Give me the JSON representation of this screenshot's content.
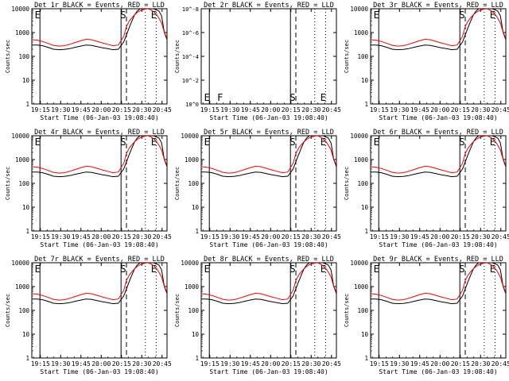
{
  "chart_data": {
    "type": "line",
    "layout": "grid-3x3",
    "ylabel": "Counts/sec",
    "xlabel": "Start Time (06-Jan-03 19:08:40)",
    "x_tick_labels": [
      "19:15",
      "19:30",
      "19:45",
      "20:00",
      "20:15",
      "20:30",
      "20:45"
    ],
    "x_tick_minutes": [
      6.33,
      21.33,
      36.33,
      51.33,
      66.33,
      81.33,
      96.33
    ],
    "xlim_minutes": [
      0,
      100
    ],
    "ylim": [
      1,
      10000
    ],
    "yscale": "log",
    "y_tick_labels": [
      "1",
      "10",
      "100",
      "1000",
      "10000"
    ],
    "y_tick_values": [
      1,
      10,
      100,
      1000,
      10000
    ],
    "series_colors": {
      "Events": "#000000",
      "LLD": "#ff0000"
    },
    "empty_y_tick_labels": [
      "10^0",
      "10^-2",
      "10^-4",
      "10^-6",
      "10^-8"
    ],
    "empty_y_tick_values": [
      1,
      0.01,
      0.0001,
      1e-06,
      1e-08
    ],
    "empty_ylim": [
      1,
      1e-08
    ],
    "time_x": [
      0,
      4,
      8,
      12,
      16,
      20,
      24,
      28,
      32,
      36,
      40,
      44,
      48,
      52,
      56,
      60,
      64,
      68,
      70,
      72,
      74,
      76,
      78,
      80,
      82,
      84,
      86,
      88,
      90,
      92,
      94,
      96,
      98,
      100
    ],
    "panels": [
      {
        "title": "Det_1r BLACK = Events, RED = LLD",
        "empty": false,
        "events": [
          300,
          300,
          280,
          240,
          200,
          190,
          195,
          210,
          240,
          270,
          300,
          290,
          260,
          230,
          210,
          190,
          200,
          400,
          800,
          1600,
          3000,
          5500,
          8000,
          10000,
          11000,
          11500,
          11000,
          10500,
          10000,
          9000,
          8000,
          5000,
          1000,
          500
        ],
        "lld": [
          500,
          480,
          420,
          350,
          290,
          270,
          280,
          320,
          380,
          450,
          520,
          500,
          430,
          370,
          320,
          280,
          300,
          700,
          1800,
          3000,
          4200,
          5600,
          7000,
          8200,
          9000,
          9600,
          10000,
          9000,
          7500,
          6000,
          4000,
          2500,
          1000,
          600
        ],
        "markers": [
          {
            "minute": 6,
            "label": "E",
            "style": "solid"
          },
          {
            "minute": 66,
            "label": "",
            "style": "solid"
          },
          {
            "minute": 70,
            "label": "S",
            "style": "dashed"
          },
          {
            "minute": 84,
            "label": "",
            "style": "dotted"
          },
          {
            "minute": 92,
            "label": "E",
            "style": "dotted"
          }
        ]
      },
      {
        "title": "Det_2r BLACK = Events, RED = LLD",
        "empty": true,
        "events": [],
        "lld": [],
        "markers": [
          {
            "minute": 6,
            "label": "E",
            "style": "solid"
          },
          {
            "minute": 66,
            "label": "",
            "style": "solid"
          },
          {
            "minute": 70,
            "label": "S",
            "style": "dashed"
          },
          {
            "minute": 84,
            "label": "",
            "style": "dotted"
          },
          {
            "minute": 92,
            "label": "E",
            "style": "dotted"
          }
        ],
        "extra_label": "F"
      },
      {
        "title": "Det_3r BLACK = Events, RED = LLD",
        "empty": false,
        "events": [
          300,
          300,
          280,
          240,
          200,
          190,
          195,
          210,
          240,
          270,
          300,
          290,
          260,
          230,
          210,
          190,
          200,
          400,
          800,
          1600,
          3000,
          5500,
          8000,
          10000,
          11000,
          11500,
          11000,
          10500,
          10000,
          9000,
          8000,
          5000,
          1000,
          500
        ],
        "lld": [
          500,
          480,
          420,
          350,
          290,
          270,
          280,
          320,
          380,
          450,
          520,
          500,
          430,
          370,
          320,
          280,
          300,
          700,
          1800,
          3000,
          4200,
          5600,
          7000,
          8200,
          9000,
          9600,
          10000,
          9000,
          7500,
          6000,
          4000,
          2500,
          1000,
          600
        ],
        "markers": [
          {
            "minute": 6,
            "label": "E",
            "style": "solid"
          },
          {
            "minute": 66,
            "label": "",
            "style": "solid"
          },
          {
            "minute": 70,
            "label": "S",
            "style": "dashed"
          },
          {
            "minute": 84,
            "label": "",
            "style": "dotted"
          },
          {
            "minute": 92,
            "label": "E",
            "style": "dotted"
          }
        ]
      },
      {
        "title": "Det_4r BLACK = Events, RED = LLD",
        "empty": false,
        "events": [
          300,
          300,
          280,
          240,
          200,
          190,
          195,
          210,
          240,
          270,
          300,
          290,
          260,
          230,
          210,
          190,
          200,
          400,
          800,
          1600,
          3000,
          5500,
          8000,
          10000,
          11000,
          11500,
          11000,
          10500,
          10000,
          9000,
          8000,
          5000,
          1000,
          500
        ],
        "lld": [
          500,
          480,
          420,
          350,
          290,
          270,
          280,
          320,
          380,
          450,
          520,
          500,
          430,
          370,
          320,
          280,
          300,
          700,
          1800,
          3000,
          4200,
          5600,
          7000,
          8200,
          9000,
          9600,
          10000,
          9000,
          7500,
          6000,
          4000,
          2500,
          1000,
          600
        ],
        "markers": [
          {
            "minute": 6,
            "label": "E",
            "style": "solid"
          },
          {
            "minute": 66,
            "label": "",
            "style": "solid"
          },
          {
            "minute": 70,
            "label": "S",
            "style": "dashed"
          },
          {
            "minute": 84,
            "label": "",
            "style": "dotted"
          },
          {
            "minute": 92,
            "label": "E",
            "style": "dotted"
          }
        ]
      },
      {
        "title": "Det_5r BLACK = Events, RED = LLD",
        "empty": false,
        "events": [
          300,
          300,
          280,
          240,
          200,
          190,
          195,
          210,
          240,
          270,
          300,
          290,
          260,
          230,
          210,
          190,
          200,
          400,
          800,
          1600,
          3000,
          5500,
          8000,
          10000,
          11000,
          11500,
          11000,
          10500,
          10000,
          9000,
          8000,
          5000,
          1000,
          500
        ],
        "lld": [
          500,
          480,
          420,
          350,
          290,
          270,
          280,
          320,
          380,
          450,
          520,
          500,
          430,
          370,
          320,
          280,
          300,
          700,
          1800,
          3000,
          4200,
          5600,
          7000,
          8200,
          9000,
          9600,
          10000,
          9000,
          7500,
          6000,
          4000,
          2500,
          1000,
          600
        ],
        "markers": [
          {
            "minute": 6,
            "label": "E",
            "style": "solid"
          },
          {
            "minute": 66,
            "label": "",
            "style": "solid"
          },
          {
            "minute": 70,
            "label": "S",
            "style": "dashed"
          },
          {
            "minute": 84,
            "label": "",
            "style": "dotted"
          },
          {
            "minute": 92,
            "label": "E",
            "style": "dotted"
          }
        ]
      },
      {
        "title": "Det_6r BLACK = Events, RED = LLD",
        "empty": false,
        "events": [
          300,
          300,
          280,
          240,
          200,
          190,
          195,
          210,
          240,
          270,
          300,
          290,
          260,
          230,
          210,
          190,
          200,
          400,
          800,
          1600,
          3000,
          5500,
          8000,
          10000,
          11000,
          11500,
          11000,
          10500,
          10000,
          9000,
          8000,
          5000,
          1000,
          500
        ],
        "lld": [
          500,
          480,
          420,
          350,
          290,
          270,
          280,
          320,
          380,
          450,
          520,
          500,
          430,
          370,
          320,
          280,
          300,
          700,
          1800,
          3000,
          4200,
          5600,
          7000,
          8200,
          9000,
          9600,
          10000,
          9000,
          7500,
          6000,
          4000,
          2500,
          1000,
          600
        ],
        "markers": [
          {
            "minute": 6,
            "label": "E",
            "style": "solid"
          },
          {
            "minute": 66,
            "label": "",
            "style": "solid"
          },
          {
            "minute": 70,
            "label": "S",
            "style": "dashed"
          },
          {
            "minute": 84,
            "label": "",
            "style": "dotted"
          },
          {
            "minute": 92,
            "label": "E",
            "style": "dotted"
          }
        ]
      },
      {
        "title": "Det_7r BLACK = Events, RED = LLD",
        "empty": false,
        "events": [
          300,
          300,
          280,
          240,
          200,
          190,
          195,
          210,
          240,
          270,
          300,
          290,
          260,
          230,
          210,
          190,
          200,
          400,
          800,
          1600,
          3000,
          5500,
          8000,
          10000,
          11000,
          11500,
          11000,
          10500,
          10000,
          9000,
          8000,
          5000,
          1000,
          500
        ],
        "lld": [
          500,
          480,
          420,
          350,
          290,
          270,
          280,
          320,
          380,
          450,
          520,
          500,
          430,
          370,
          320,
          280,
          300,
          700,
          1800,
          3000,
          4200,
          5600,
          7000,
          8200,
          9000,
          9600,
          10000,
          9000,
          7500,
          6000,
          4000,
          2500,
          1000,
          600
        ],
        "markers": [
          {
            "minute": 6,
            "label": "E",
            "style": "solid"
          },
          {
            "minute": 66,
            "label": "",
            "style": "solid"
          },
          {
            "minute": 70,
            "label": "S",
            "style": "dashed"
          },
          {
            "minute": 84,
            "label": "",
            "style": "dotted"
          },
          {
            "minute": 92,
            "label": "E",
            "style": "dotted"
          }
        ]
      },
      {
        "title": "Det_8r BLACK = Events, RED = LLD",
        "empty": false,
        "events": [
          300,
          300,
          280,
          240,
          200,
          190,
          195,
          210,
          240,
          270,
          300,
          290,
          260,
          230,
          210,
          190,
          200,
          400,
          800,
          1600,
          3000,
          5500,
          8000,
          10000,
          11000,
          11500,
          11000,
          10500,
          10000,
          9000,
          8000,
          5000,
          1000,
          500
        ],
        "lld": [
          500,
          480,
          420,
          350,
          290,
          270,
          280,
          320,
          380,
          450,
          520,
          500,
          430,
          370,
          320,
          280,
          300,
          700,
          1800,
          3000,
          4200,
          5600,
          7000,
          8200,
          9000,
          9600,
          10000,
          9000,
          7500,
          6000,
          4000,
          2500,
          1000,
          600
        ],
        "markers": [
          {
            "minute": 6,
            "label": "E",
            "style": "solid"
          },
          {
            "minute": 66,
            "label": "",
            "style": "solid"
          },
          {
            "minute": 70,
            "label": "S",
            "style": "dashed"
          },
          {
            "minute": 84,
            "label": "",
            "style": "dotted"
          },
          {
            "minute": 92,
            "label": "E",
            "style": "dotted"
          }
        ]
      },
      {
        "title": "Det_9r BLACK = Events, RED = LLD",
        "empty": false,
        "events": [
          300,
          300,
          280,
          240,
          200,
          190,
          195,
          210,
          240,
          270,
          300,
          290,
          260,
          230,
          210,
          190,
          200,
          400,
          800,
          1600,
          3000,
          5500,
          8000,
          10000,
          11000,
          11500,
          11000,
          10500,
          10000,
          9000,
          8000,
          5000,
          1000,
          500
        ],
        "lld": [
          500,
          480,
          420,
          350,
          290,
          270,
          280,
          320,
          380,
          450,
          520,
          500,
          430,
          370,
          320,
          280,
          300,
          700,
          1800,
          3000,
          4200,
          5600,
          7000,
          8200,
          9000,
          9600,
          10000,
          9000,
          7500,
          6000,
          4000,
          2500,
          1000,
          600
        ],
        "markers": [
          {
            "minute": 6,
            "label": "E",
            "style": "solid"
          },
          {
            "minute": 66,
            "label": "",
            "style": "solid"
          },
          {
            "minute": 70,
            "label": "S",
            "style": "dashed"
          },
          {
            "minute": 84,
            "label": "",
            "style": "dotted"
          },
          {
            "minute": 92,
            "label": "E",
            "style": "dotted"
          }
        ]
      }
    ]
  }
}
